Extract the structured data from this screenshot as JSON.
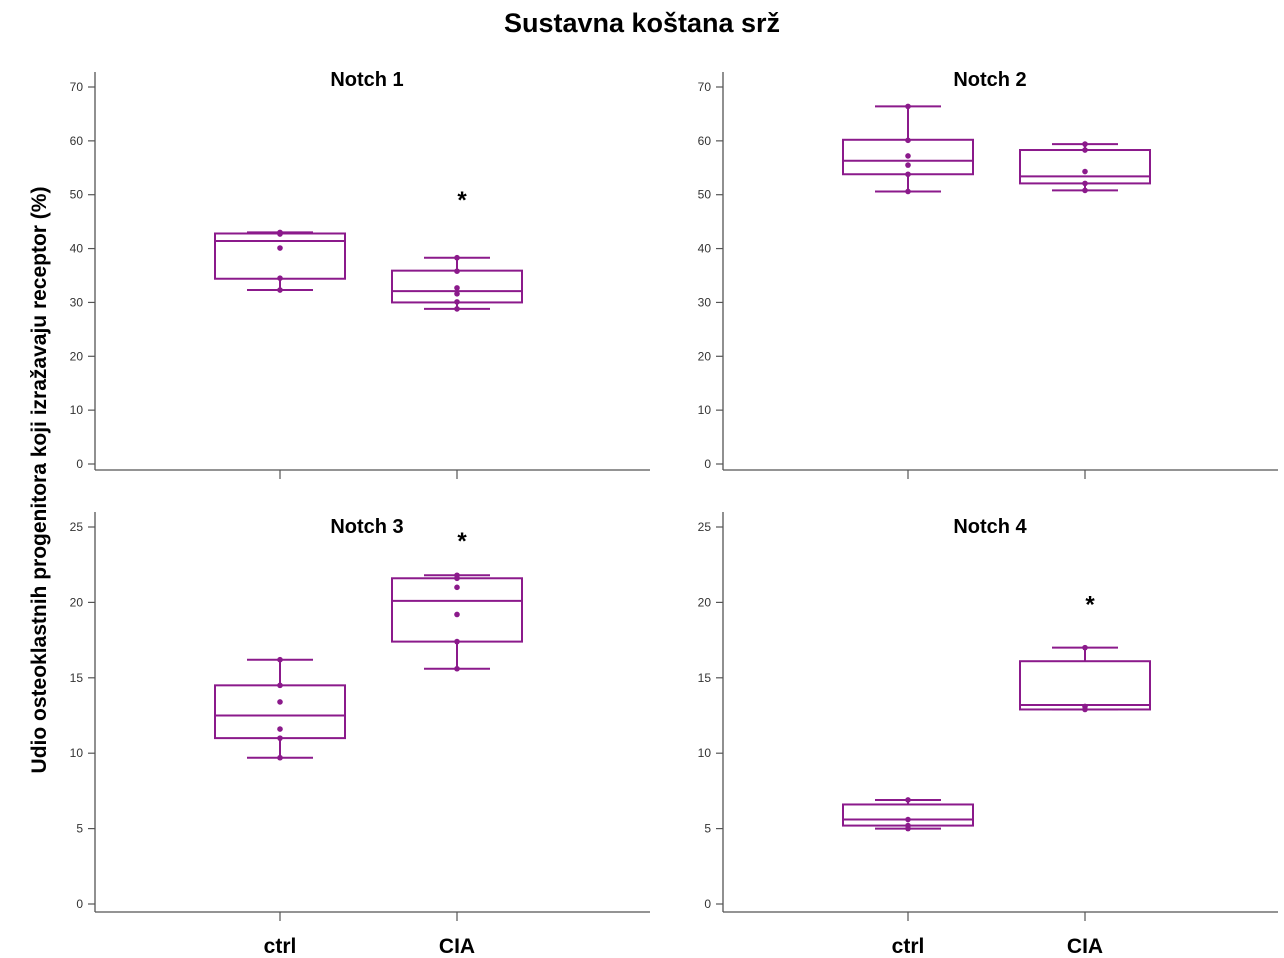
{
  "figure": {
    "title": "Sustavna koštana srž",
    "ylabel": "Udio osteoklastnih progenitora koji izražavaju receptor (%)",
    "box_color": "#8B1A8B",
    "point_color": "#8B1A8B"
  },
  "chart_data": [
    {
      "type": "box",
      "title": "Notch 1",
      "categories": [
        "ctrl",
        "CIA"
      ],
      "ylim": [
        0,
        70
      ],
      "yticks": [
        0,
        10,
        20,
        30,
        40,
        50,
        60,
        70
      ],
      "boxes": [
        {
          "category": "ctrl",
          "min": 32.3,
          "q1": 34.4,
          "median": 41.4,
          "q3": 42.8,
          "max": 43.0,
          "points": [
            32.3,
            34.5,
            40.1,
            42.7,
            43.0
          ]
        },
        {
          "category": "CIA",
          "min": 28.8,
          "q1": 30.0,
          "median": 32.1,
          "q3": 35.9,
          "max": 38.3,
          "points": [
            28.8,
            30.1,
            31.6,
            32.7,
            35.8,
            38.3
          ],
          "significance": "*",
          "significance_value": 50.5
        }
      ]
    },
    {
      "type": "box",
      "title": "Notch 2",
      "categories": [
        "ctrl",
        "CIA"
      ],
      "ylim": [
        0,
        70
      ],
      "yticks": [
        0,
        10,
        20,
        30,
        40,
        50,
        60,
        70
      ],
      "boxes": [
        {
          "category": "ctrl",
          "min": 50.6,
          "q1": 53.8,
          "median": 56.3,
          "q3": 60.2,
          "max": 66.4,
          "points": [
            50.6,
            53.8,
            55.5,
            57.2,
            60.1,
            66.4
          ]
        },
        {
          "category": "CIA",
          "min": 50.8,
          "q1": 52.1,
          "median": 53.4,
          "q3": 58.3,
          "max": 59.4,
          "points": [
            50.8,
            52.1,
            54.3,
            58.3,
            59.4
          ]
        }
      ]
    },
    {
      "type": "box",
      "title": "Notch 3",
      "categories": [
        "ctrl",
        "CIA"
      ],
      "ylim": [
        0,
        25
      ],
      "yticks": [
        0,
        5,
        10,
        15,
        20,
        25
      ],
      "boxes": [
        {
          "category": "ctrl",
          "min": 9.7,
          "q1": 11.0,
          "median": 12.5,
          "q3": 14.5,
          "max": 16.2,
          "points": [
            9.7,
            11.0,
            11.6,
            13.4,
            14.5,
            16.2
          ]
        },
        {
          "category": "CIA",
          "min": 15.6,
          "q1": 17.4,
          "median": 20.1,
          "q3": 21.6,
          "max": 21.8,
          "points": [
            15.6,
            17.4,
            19.2,
            21.0,
            21.6,
            21.8
          ],
          "significance": "*",
          "significance_value": 24.6
        }
      ]
    },
    {
      "type": "box",
      "title": "Notch 4",
      "categories": [
        "ctrl",
        "CIA"
      ],
      "ylim": [
        0,
        25
      ],
      "yticks": [
        0,
        5,
        10,
        15,
        20,
        25
      ],
      "boxes": [
        {
          "category": "ctrl",
          "min": 5.0,
          "q1": 5.2,
          "median": 5.6,
          "q3": 6.6,
          "max": 6.9,
          "points": [
            5.0,
            5.2,
            5.6,
            6.9
          ]
        },
        {
          "category": "CIA",
          "min": 12.9,
          "q1": 12.9,
          "median": 13.2,
          "q3": 16.1,
          "max": 17.0,
          "points": [
            12.9,
            13.1,
            17.0
          ],
          "significance": "*",
          "significance_value": 20.4
        }
      ]
    }
  ]
}
